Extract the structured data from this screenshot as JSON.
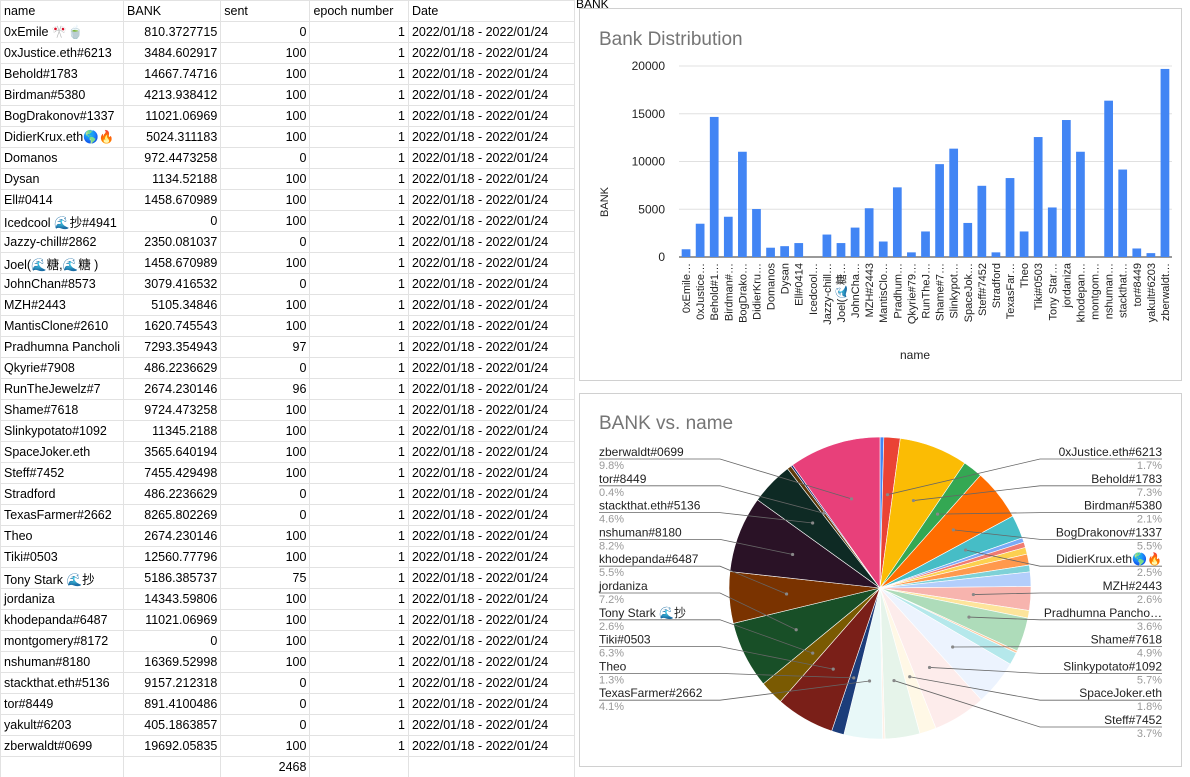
{
  "sheet": {
    "headers": [
      "name",
      "BANK",
      "sent",
      "epoch number",
      "Date"
    ],
    "column_f_label": "BANK",
    "rows": [
      [
        "0xEmile 🎌🍵",
        "810.3727715",
        "0",
        "1",
        "2022/01/18 - 2022/01/24"
      ],
      [
        "0xJustice.eth#6213",
        "3484.602917",
        "100",
        "1",
        "2022/01/18 - 2022/01/24"
      ],
      [
        "Behold#1783",
        "14667.74716",
        "100",
        "1",
        "2022/01/18 - 2022/01/24"
      ],
      [
        "Birdman#5380",
        "4213.938412",
        "100",
        "1",
        "2022/01/18 - 2022/01/24"
      ],
      [
        "BogDrakonov#1337",
        "11021.06969",
        "100",
        "1",
        "2022/01/18 - 2022/01/24"
      ],
      [
        "DidierKrux.eth🌎🔥",
        "5024.311183",
        "100",
        "1",
        "2022/01/18 - 2022/01/24"
      ],
      [
        "Domanos",
        "972.4473258",
        "0",
        "1",
        "2022/01/18 - 2022/01/24"
      ],
      [
        "Dysan",
        "1134.52188",
        "100",
        "1",
        "2022/01/18 - 2022/01/24"
      ],
      [
        "Ell#0414",
        "1458.670989",
        "100",
        "1",
        "2022/01/18 - 2022/01/24"
      ],
      [
        "Icedcool 🌊抄#4941",
        "0",
        "100",
        "1",
        "2022/01/18 - 2022/01/24"
      ],
      [
        "Jazzy-chill#2862",
        "2350.081037",
        "0",
        "1",
        "2022/01/18 - 2022/01/24"
      ],
      [
        "Joel(🌊糖,🌊糖 )",
        "1458.670989",
        "100",
        "1",
        "2022/01/18 - 2022/01/24"
      ],
      [
        "JohnChan#8573",
        "3079.416532",
        "0",
        "1",
        "2022/01/18 - 2022/01/24"
      ],
      [
        "MZH#2443",
        "5105.34846",
        "100",
        "1",
        "2022/01/18 - 2022/01/24"
      ],
      [
        "MantisClone#2610",
        "1620.745543",
        "100",
        "1",
        "2022/01/18 - 2022/01/24"
      ],
      [
        "Pradhumna Pancholi",
        "7293.354943",
        "97",
        "1",
        "2022/01/18 - 2022/01/24"
      ],
      [
        "Qkyrie#7908",
        "486.2236629",
        "0",
        "1",
        "2022/01/18 - 2022/01/24"
      ],
      [
        "RunTheJewelz#7",
        "2674.230146",
        "96",
        "1",
        "2022/01/18 - 2022/01/24"
      ],
      [
        "Shame#7618",
        "9724.473258",
        "100",
        "1",
        "2022/01/18 - 2022/01/24"
      ],
      [
        "Slinkypotato#1092",
        "11345.2188",
        "100",
        "1",
        "2022/01/18 - 2022/01/24"
      ],
      [
        "SpaceJoker.eth",
        "3565.640194",
        "100",
        "1",
        "2022/01/18 - 2022/01/24"
      ],
      [
        "Steff#7452",
        "7455.429498",
        "100",
        "1",
        "2022/01/18 - 2022/01/24"
      ],
      [
        "Stradford",
        "486.2236629",
        "0",
        "1",
        "2022/01/18 - 2022/01/24"
      ],
      [
        "TexasFarmer#2662",
        "8265.802269",
        "0",
        "1",
        "2022/01/18 - 2022/01/24"
      ],
      [
        "Theo",
        "2674.230146",
        "100",
        "1",
        "2022/01/18 - 2022/01/24"
      ],
      [
        "Tiki#0503",
        "12560.77796",
        "100",
        "1",
        "2022/01/18 - 2022/01/24"
      ],
      [
        "Tony Stark 🌊抄",
        "5186.385737",
        "75",
        "1",
        "2022/01/18 - 2022/01/24"
      ],
      [
        "jordaniza",
        "14343.59806",
        "100",
        "1",
        "2022/01/18 - 2022/01/24"
      ],
      [
        "khodepanda#6487",
        "11021.06969",
        "100",
        "1",
        "2022/01/18 - 2022/01/24"
      ],
      [
        "montgomery#8172",
        "0",
        "100",
        "1",
        "2022/01/18 - 2022/01/24"
      ],
      [
        "nshuman#8180",
        "16369.52998",
        "100",
        "1",
        "2022/01/18 - 2022/01/24"
      ],
      [
        "stackthat.eth#5136",
        "9157.212318",
        "0",
        "1",
        "2022/01/18 - 2022/01/24"
      ],
      [
        "tor#8449",
        "891.4100486",
        "0",
        "1",
        "2022/01/18 - 2022/01/24"
      ],
      [
        "yakult#6203",
        "405.1863857",
        "0",
        "1",
        "2022/01/18 - 2022/01/24"
      ],
      [
        "zberwaldt#0699",
        "19692.05835",
        "100",
        "1",
        "2022/01/18 - 2022/01/24"
      ]
    ],
    "total_row": [
      "",
      "",
      "2468",
      "",
      ""
    ]
  },
  "colors": {
    "bar": "#4285f4",
    "pie": [
      "#4285f4",
      "#ea4335",
      "#fbbc04",
      "#34a853",
      "#ff6d01",
      "#46bdc6",
      "#7baaf7",
      "#f07b72",
      "#fcd04f",
      "#71c287",
      "#ff994d",
      "#7ed1d7",
      "#b3cefb",
      "#f7b4ae",
      "#fde49b",
      "#aedcba",
      "#ffc599",
      "#b5e8eb",
      "#ecf3fe",
      "#fdeceb",
      "#fff8e6",
      "#e6f4ea",
      "#fff0e6",
      "#e8f8f8",
      "#1c3d7a",
      "#7a1f18",
      "#7a5a02",
      "#184f27",
      "#7a3300",
      "#1f5b60",
      "#2a1226",
      "#0e2a24",
      "#5e3a0a",
      "#12216b",
      "#e8407a"
    ]
  },
  "chart_data": [
    {
      "type": "bar",
      "title": "Bank Distribution",
      "xlabel": "name",
      "ylabel": "BANK",
      "ylim": [
        0,
        20000
      ],
      "yticks": [
        "0",
        "5000",
        "10000",
        "15000",
        "20000"
      ],
      "grid": true,
      "categories": [
        "0xEmile…",
        "0xJustice…",
        "Behold#1…",
        "Birdman#…",
        "BogDrako…",
        "DidierKru…",
        "Domanos",
        "Dysan",
        "Ell#0414",
        "Icedcool…",
        "Jazzy-chill…",
        "Joel(🌊糖…",
        "JohnCha…",
        "MZH#2443",
        "MantisClo…",
        "Pradhum…",
        "Qkyrie#79…",
        "RunTheJ…",
        "Shame#7…",
        "Slinkypot…",
        "SpaceJok…",
        "Steff#7452",
        "Stradford",
        "TexasFar…",
        "Theo",
        "Tiki#0503",
        "Tony Star…",
        "jordaniza",
        "khodepan…",
        "montgom…",
        "nshuman…",
        "stackthat…",
        "tor#8449",
        "yakult#6203",
        "zberwaldt…"
      ],
      "values": [
        810.37,
        3484.6,
        14667.75,
        4213.94,
        11021.07,
        5024.31,
        972.45,
        1134.52,
        1458.67,
        0,
        2350.08,
        1458.67,
        3079.42,
        5105.35,
        1620.75,
        7293.35,
        486.22,
        2674.23,
        9724.47,
        11345.22,
        3565.64,
        7455.43,
        486.22,
        8265.8,
        2674.23,
        12560.78,
        5186.39,
        14343.6,
        11021.07,
        0,
        16369.53,
        9157.21,
        891.41,
        405.19,
        19692.06
      ]
    },
    {
      "type": "pie",
      "title": "BANK vs. name",
      "labels_left": [
        {
          "name": "zberwaldt#0699",
          "pct": "9.8%"
        },
        {
          "name": "tor#8449",
          "pct": "0.4%"
        },
        {
          "name": "stackthat.eth#5136",
          "pct": "4.6%"
        },
        {
          "name": "nshuman#8180",
          "pct": "8.2%"
        },
        {
          "name": "khodepanda#6487",
          "pct": "5.5%"
        },
        {
          "name": "jordaniza",
          "pct": "7.2%"
        },
        {
          "name": "Tony Stark 🌊抄",
          "pct": "2.6%"
        },
        {
          "name": "Tiki#0503",
          "pct": "6.3%"
        },
        {
          "name": "Theo",
          "pct": "1.3%"
        },
        {
          "name": "TexasFarmer#2662",
          "pct": "4.1%"
        }
      ],
      "labels_right": [
        {
          "name": "0xJustice.eth#6213",
          "pct": "1.7%"
        },
        {
          "name": "Behold#1783",
          "pct": "7.3%"
        },
        {
          "name": "Birdman#5380",
          "pct": "2.1%"
        },
        {
          "name": "BogDrakonov#1337",
          "pct": "5.5%"
        },
        {
          "name": "DidierKrux.eth🌎🔥",
          "pct": "2.5%"
        },
        {
          "name": "MZH#2443",
          "pct": "2.6%"
        },
        {
          "name": "Pradhumna Pancho…",
          "pct": "3.6%"
        },
        {
          "name": "Shame#7618",
          "pct": "4.9%"
        },
        {
          "name": "Slinkypotato#1092",
          "pct": "5.7%"
        },
        {
          "name": "SpaceJoker.eth",
          "pct": "1.8%"
        },
        {
          "name": "Steff#7452",
          "pct": "3.7%"
        }
      ]
    }
  ]
}
